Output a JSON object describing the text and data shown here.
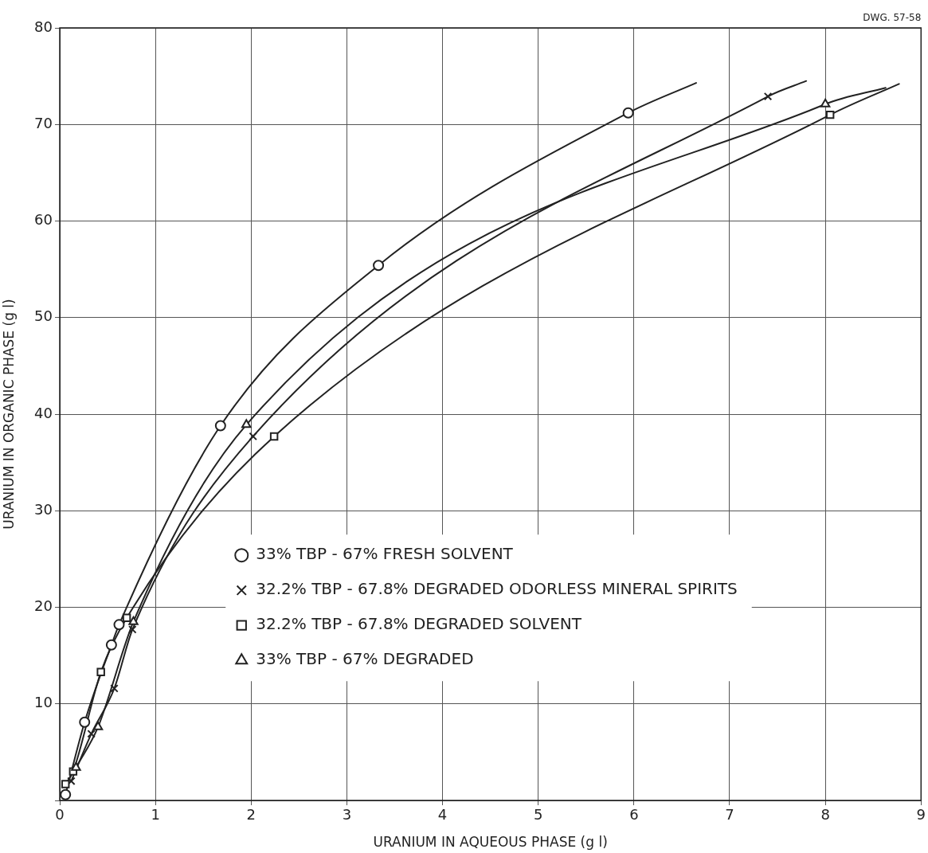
{
  "chart_data": {
    "type": "scatter",
    "xlabel": "URANIUM IN AQUEOUS PHASE (g l)",
    "ylabel": "URANIUM IN ORGANIC PHASE (g l)",
    "annotations": [
      "DWG. 57-58"
    ],
    "xlim": [
      0,
      9
    ],
    "xticks": [
      0,
      1,
      2,
      3,
      4,
      5,
      6,
      7,
      8,
      9
    ],
    "ylim": [
      0,
      80
    ],
    "yticks": [
      {
        "value": 0,
        "label": null
      },
      10,
      20,
      30,
      40,
      50,
      60,
      70,
      80
    ],
    "grid": true,
    "legend": "center",
    "series": [
      {
        "type": "line",
        "color": "#222222",
        "marker": "none",
        "line_style": "solid",
        "x": [
          0.06,
          0.26,
          0.54,
          0.62,
          1.68,
          3.33,
          5.94,
          6.65
        ],
        "values": [
          0.6,
          8.1,
          16.1,
          18.2,
          38.8,
          55.4,
          71.2,
          74.3
        ]
      },
      {
        "type": "line",
        "color": "#222222",
        "marker": "none",
        "line_style": "solid",
        "x": [
          0.12,
          0.33,
          0.57,
          0.76,
          2.02,
          7.4,
          7.8
        ],
        "values": [
          2.0,
          6.9,
          11.6,
          17.7,
          37.7,
          72.9,
          74.5
        ]
      },
      {
        "type": "line",
        "color": "#222222",
        "marker": "none",
        "line_style": "solid",
        "x": [
          0.06,
          0.14,
          0.43,
          0.7,
          2.24,
          8.05,
          8.77
        ],
        "values": [
          1.7,
          3.0,
          13.3,
          18.9,
          37.7,
          71.0,
          74.2
        ]
      },
      {
        "type": "line",
        "color": "#222222",
        "marker": "none",
        "line_style": "solid",
        "x": [
          0.17,
          0.4,
          0.77,
          1.95,
          8.0,
          8.63
        ],
        "values": [
          3.4,
          7.6,
          18.5,
          38.9,
          72.1,
          73.8
        ]
      },
      {
        "name": "33% TBP - 67% FRESH SOLVENT",
        "color": "#222222",
        "marker": "circle",
        "x": [
          0.06,
          0.26,
          0.54,
          0.62,
          1.68,
          3.33,
          5.94
        ],
        "values": [
          0.6,
          8.1,
          16.1,
          18.2,
          38.8,
          55.4,
          71.2
        ]
      },
      {
        "name": "32.2% TBP - 67.8% DEGRADED ODORLESS MINERAL SPIRITS",
        "color": "#222222",
        "marker": "cross",
        "x": [
          0.12,
          0.33,
          0.57,
          0.76,
          2.02,
          7.4
        ],
        "values": [
          2.0,
          6.9,
          11.6,
          17.7,
          37.7,
          72.9
        ]
      },
      {
        "name": "32.2% TBP - 67.8% DEGRADED SOLVENT",
        "color": "#222222",
        "marker": "square",
        "x": [
          0.06,
          0.14,
          0.43,
          0.7,
          2.24,
          8.05
        ],
        "values": [
          1.7,
          3.0,
          13.3,
          18.9,
          37.7,
          71.0
        ]
      },
      {
        "name": "33% TBP - 67% DEGRADED",
        "color": "#222222",
        "marker": "triangle",
        "x": [
          0.17,
          0.4,
          0.77,
          1.95,
          8.0
        ],
        "values": [
          3.4,
          7.6,
          18.5,
          38.9,
          72.1
        ]
      }
    ]
  }
}
